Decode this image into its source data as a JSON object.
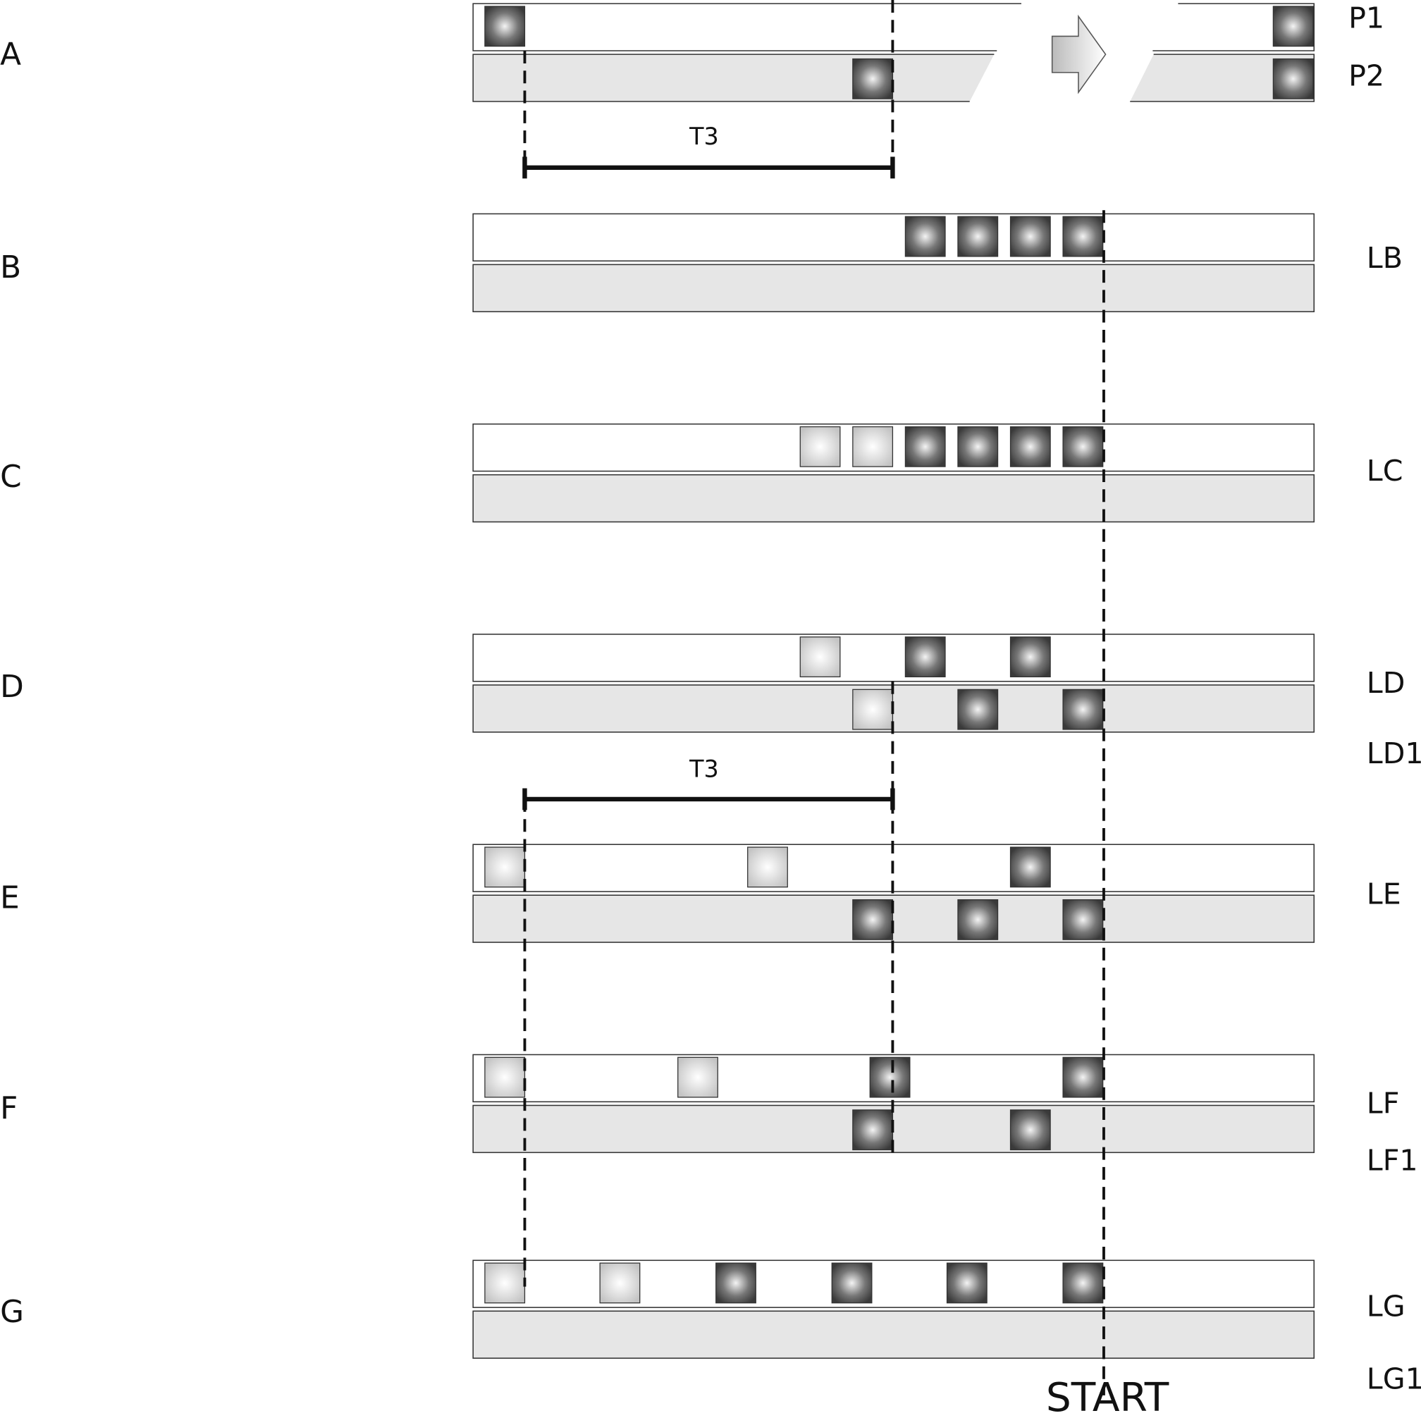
{
  "rows": [
    {
      "letter": "A",
      "lanes": [
        "P1",
        "P2"
      ]
    },
    {
      "letter": "B",
      "lanes": [
        "LB"
      ]
    },
    {
      "letter": "C",
      "lanes": [
        "LC"
      ]
    },
    {
      "letter": "D",
      "lanes": [
        "LD",
        "LD1"
      ]
    },
    {
      "letter": "E",
      "lanes": [
        "LE"
      ]
    },
    {
      "letter": "F",
      "lanes": [
        "LF",
        "LF1"
      ]
    },
    {
      "letter": "G",
      "lanes": [
        "LG",
        "LG1"
      ]
    }
  ],
  "intervals": [
    "T3",
    "T3"
  ],
  "marker": "START"
}
